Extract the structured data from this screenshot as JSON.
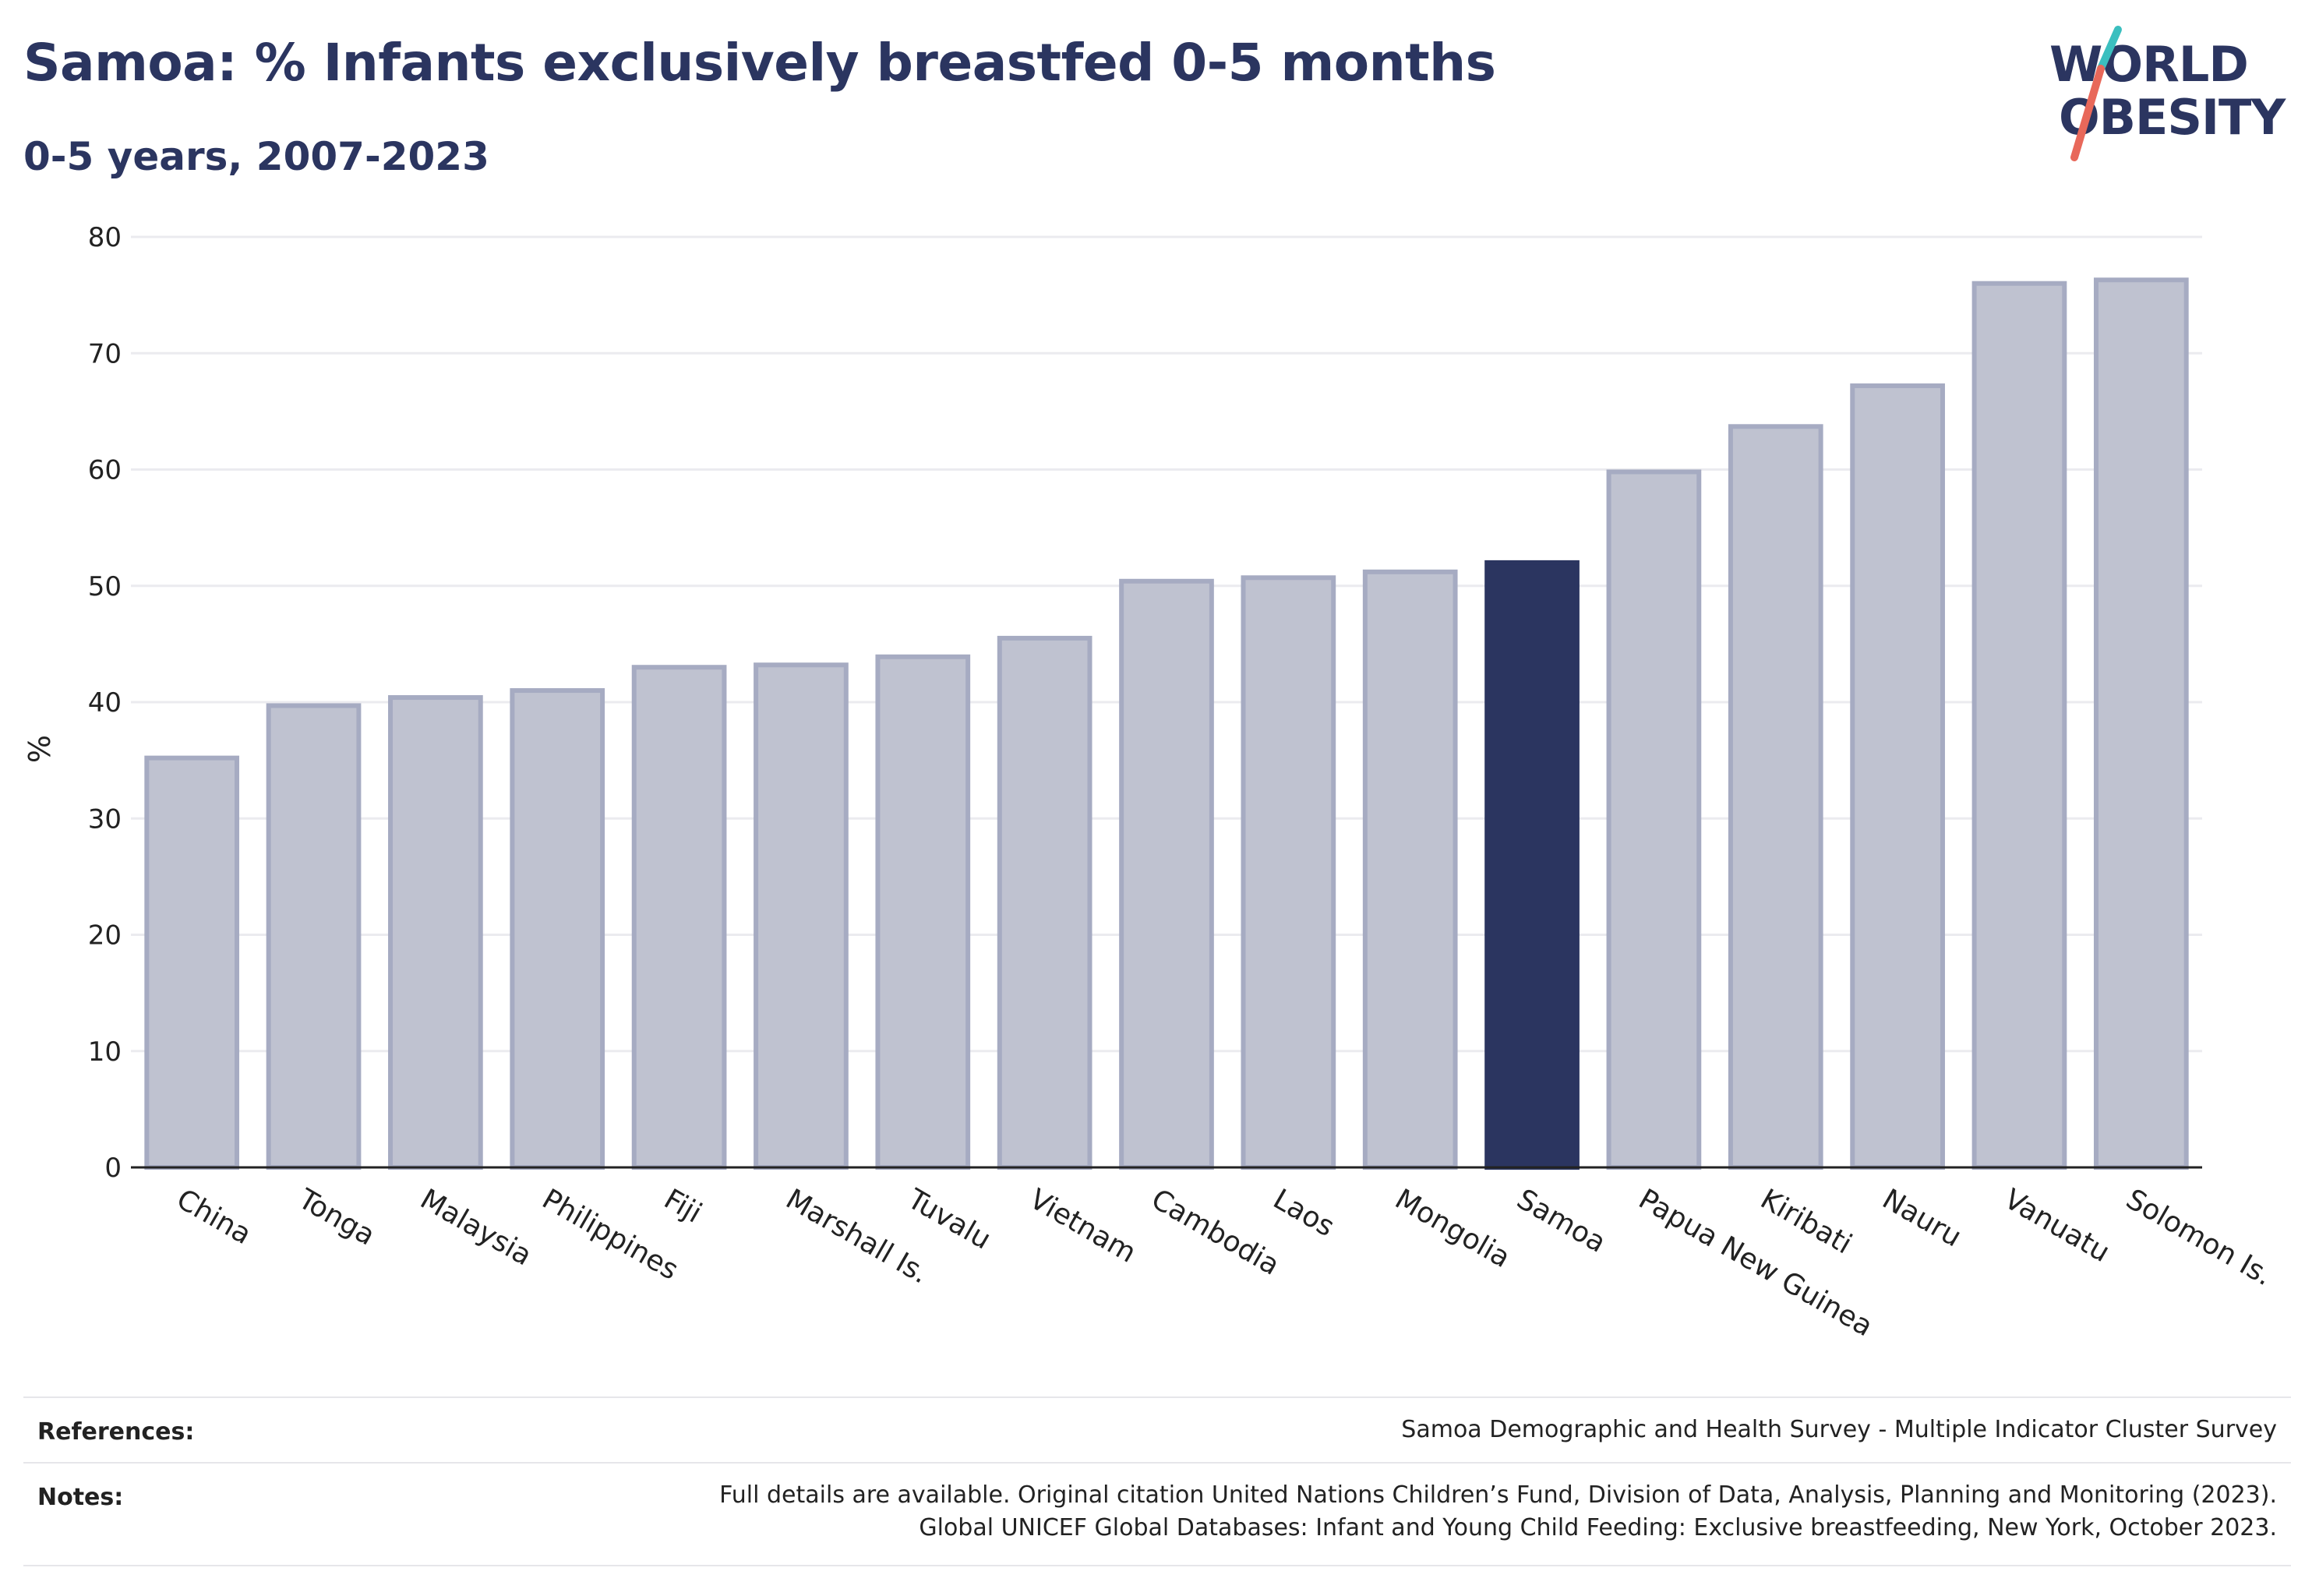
{
  "title": "Samoa: % Infants exclusively breastfed 0-5 months",
  "subtitle": "0-5 years, 2007-2023",
  "logo": {
    "line1": "WORLD",
    "line2": "OBESITY"
  },
  "colors": {
    "highlight": "#2b3560",
    "bar_fill": "#bfc2d0",
    "bar_stroke": "#a6abc2",
    "text": "#2b3560",
    "logo_teal": "#3bbfbf",
    "logo_coral": "#e8685a"
  },
  "chart_data": {
    "type": "bar",
    "categories": [
      "China",
      "Tonga",
      "Malaysia",
      "Philippines",
      "Fiji",
      "Marshall Is.",
      "Tuvalu",
      "Vietnam",
      "Cambodia",
      "Laos",
      "Mongolia",
      "Samoa",
      "Papua New Guinea",
      "Kiribati",
      "Nauru",
      "Vanuatu",
      "Solomon Is."
    ],
    "values": [
      35.2,
      39.7,
      40.4,
      41.0,
      43.0,
      43.2,
      43.9,
      45.5,
      50.4,
      50.7,
      51.2,
      52.0,
      59.8,
      63.7,
      67.2,
      76.0,
      76.3
    ],
    "highlight": "Samoa",
    "ylabel": "%",
    "ylim": [
      0,
      80
    ],
    "yticks": [
      0,
      10,
      20,
      30,
      40,
      50,
      60,
      70,
      80
    ],
    "grid": true
  },
  "footer": {
    "references_label": "References:",
    "references_text": "Samoa Demographic and Health Survey - Multiple Indicator Cluster Survey",
    "notes_label": "Notes:",
    "notes_line1": "Full details are available. Original citation United Nations Children’s Fund, Division of Data, Analysis, Planning and Monitoring (2023).",
    "notes_line2": "Global UNICEF Global Databases: Infant and Young Child Feeding: Exclusive breastfeeding, New York, October 2023."
  }
}
